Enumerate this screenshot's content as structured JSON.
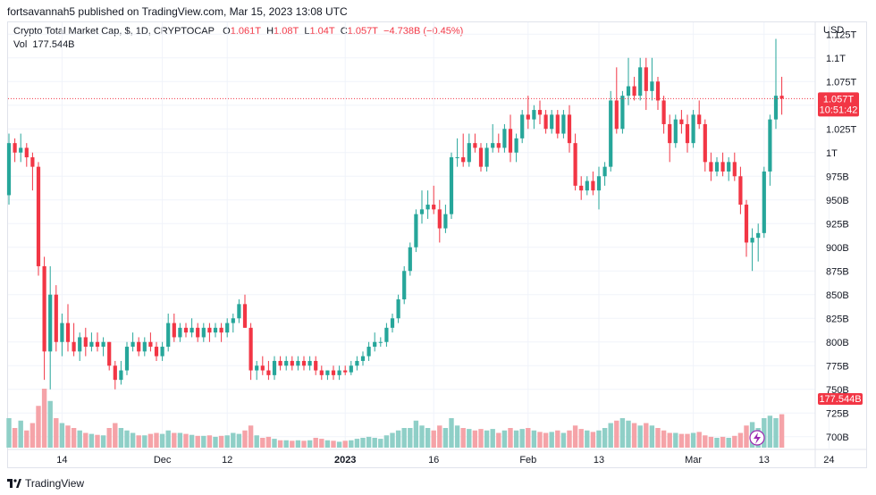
{
  "header": {
    "publisher_line": "fortsavannah5 published on TradingView.com, Mar 15, 2023 13:08 UTC"
  },
  "legend": {
    "symbol": "Crypto Total Market Cap, $, 1D, CRYPTOCAP",
    "o_label": "O",
    "o": "1.061T",
    "h_label": "H",
    "h": "1.08T",
    "l_label": "L",
    "l": "1.04T",
    "c_label": "C",
    "c": "1.057T",
    "change": "−4.738B (−0.45%)",
    "vol_label": "Vol",
    "vol": "177.544B"
  },
  "axis": {
    "currency": "USD"
  },
  "footer": {
    "brand": "TradingView"
  },
  "colors": {
    "up": "#26a69a",
    "down": "#f23645",
    "up_vol": "#8fcfc7",
    "down_vol": "#f5a3a8",
    "grid": "#f0f3fa"
  },
  "chart_data": {
    "type": "candlestick",
    "title": "Crypto Total Market Cap, $, 1D, CRYPTOCAP",
    "y_unit": "T",
    "ylim": [
      0.6875,
      1.1375
    ],
    "y_ticks": [
      0.7,
      0.725,
      0.75,
      0.775,
      0.8,
      0.825,
      0.85,
      0.875,
      0.9,
      0.925,
      0.95,
      0.975,
      1.0,
      1.025,
      1.05,
      1.075,
      1.1,
      1.125
    ],
    "y_tick_labels": [
      "700B",
      "725B",
      "750B",
      "775B",
      "800B",
      "825B",
      "850B",
      "875B",
      "900B",
      "925B",
      "950B",
      "975B",
      "1T",
      "1.025T",
      "1.05T",
      "1.075T",
      "1.1T",
      "1.125T"
    ],
    "x_ticks": [
      {
        "label": "14",
        "index": 9,
        "bold": false
      },
      {
        "label": "Dec",
        "index": 26,
        "bold": false
      },
      {
        "label": "12",
        "index": 37,
        "bold": false
      },
      {
        "label": "2023",
        "index": 57,
        "bold": true
      },
      {
        "label": "16",
        "index": 72,
        "bold": false
      },
      {
        "label": "Feb",
        "index": 88,
        "bold": false
      },
      {
        "label": "13",
        "index": 100,
        "bold": false
      },
      {
        "label": "Mar",
        "index": 116,
        "bold": false
      },
      {
        "label": "13",
        "index": 128,
        "bold": false
      },
      {
        "label": "24",
        "index": 139,
        "bold": false
      }
    ],
    "last_price": {
      "value": 1.057,
      "label": "1.057T",
      "countdown": "10:51:42"
    },
    "last_volume_label": "177.544B",
    "volume_ylim": [
      0,
      120
    ],
    "candles": [
      [
        0.955,
        1.02,
        0.945,
        1.01,
        60
      ],
      [
        1.01,
        1.015,
        0.99,
        1.0,
        40
      ],
      [
        1.0,
        1.02,
        0.99,
        1.005,
        55
      ],
      [
        1.005,
        1.01,
        0.985,
        0.995,
        35
      ],
      [
        0.995,
        1.0,
        0.96,
        0.985,
        50
      ],
      [
        0.985,
        0.99,
        0.87,
        0.88,
        85
      ],
      [
        0.88,
        0.89,
        0.76,
        0.79,
        120
      ],
      [
        0.79,
        0.88,
        0.75,
        0.85,
        95
      ],
      [
        0.85,
        0.86,
        0.79,
        0.8,
        60
      ],
      [
        0.8,
        0.83,
        0.785,
        0.82,
        50
      ],
      [
        0.82,
        0.84,
        0.79,
        0.8,
        45
      ],
      [
        0.8,
        0.82,
        0.785,
        0.79,
        40
      ],
      [
        0.79,
        0.81,
        0.78,
        0.805,
        35
      ],
      [
        0.805,
        0.815,
        0.785,
        0.795,
        30
      ],
      [
        0.795,
        0.81,
        0.79,
        0.8,
        28
      ],
      [
        0.8,
        0.81,
        0.79,
        0.795,
        26
      ],
      [
        0.795,
        0.805,
        0.785,
        0.8,
        25
      ],
      [
        0.8,
        0.8,
        0.77,
        0.775,
        40
      ],
      [
        0.775,
        0.78,
        0.75,
        0.76,
        50
      ],
      [
        0.76,
        0.78,
        0.755,
        0.77,
        40
      ],
      [
        0.77,
        0.8,
        0.765,
        0.795,
        35
      ],
      [
        0.795,
        0.81,
        0.79,
        0.8,
        30
      ],
      [
        0.8,
        0.805,
        0.785,
        0.79,
        25
      ],
      [
        0.79,
        0.805,
        0.785,
        0.8,
        25
      ],
      [
        0.8,
        0.81,
        0.79,
        0.795,
        28
      ],
      [
        0.795,
        0.8,
        0.78,
        0.785,
        30
      ],
      [
        0.785,
        0.8,
        0.78,
        0.795,
        28
      ],
      [
        0.795,
        0.83,
        0.79,
        0.82,
        35
      ],
      [
        0.82,
        0.83,
        0.8,
        0.805,
        30
      ],
      [
        0.805,
        0.82,
        0.8,
        0.815,
        30
      ],
      [
        0.815,
        0.82,
        0.805,
        0.81,
        28
      ],
      [
        0.81,
        0.825,
        0.805,
        0.815,
        26
      ],
      [
        0.815,
        0.82,
        0.8,
        0.805,
        24
      ],
      [
        0.805,
        0.82,
        0.8,
        0.815,
        24
      ],
      [
        0.815,
        0.82,
        0.8,
        0.81,
        25
      ],
      [
        0.81,
        0.82,
        0.805,
        0.815,
        22
      ],
      [
        0.815,
        0.82,
        0.8,
        0.81,
        24
      ],
      [
        0.81,
        0.825,
        0.805,
        0.82,
        25
      ],
      [
        0.82,
        0.83,
        0.81,
        0.825,
        30
      ],
      [
        0.825,
        0.845,
        0.82,
        0.84,
        28
      ],
      [
        0.84,
        0.85,
        0.815,
        0.815,
        35
      ],
      [
        0.815,
        0.82,
        0.76,
        0.77,
        45
      ],
      [
        0.77,
        0.78,
        0.76,
        0.775,
        25
      ],
      [
        0.775,
        0.785,
        0.765,
        0.77,
        20
      ],
      [
        0.77,
        0.78,
        0.76,
        0.765,
        22
      ],
      [
        0.765,
        0.785,
        0.76,
        0.78,
        18
      ],
      [
        0.78,
        0.785,
        0.77,
        0.775,
        15
      ],
      [
        0.775,
        0.785,
        0.77,
        0.78,
        15
      ],
      [
        0.78,
        0.785,
        0.77,
        0.775,
        14
      ],
      [
        0.775,
        0.785,
        0.77,
        0.78,
        15
      ],
      [
        0.78,
        0.785,
        0.77,
        0.775,
        14
      ],
      [
        0.775,
        0.785,
        0.77,
        0.78,
        15
      ],
      [
        0.78,
        0.785,
        0.765,
        0.77,
        20
      ],
      [
        0.77,
        0.775,
        0.76,
        0.765,
        18
      ],
      [
        0.765,
        0.77,
        0.76,
        0.77,
        15
      ],
      [
        0.77,
        0.775,
        0.76,
        0.765,
        14
      ],
      [
        0.765,
        0.775,
        0.76,
        0.77,
        12
      ],
      [
        0.77,
        0.775,
        0.765,
        0.768,
        14
      ],
      [
        0.768,
        0.78,
        0.765,
        0.775,
        15
      ],
      [
        0.775,
        0.785,
        0.77,
        0.78,
        18
      ],
      [
        0.78,
        0.79,
        0.775,
        0.785,
        20
      ],
      [
        0.785,
        0.8,
        0.78,
        0.795,
        22
      ],
      [
        0.795,
        0.81,
        0.79,
        0.8,
        20
      ],
      [
        0.8,
        0.805,
        0.795,
        0.8,
        18
      ],
      [
        0.8,
        0.82,
        0.795,
        0.815,
        25
      ],
      [
        0.815,
        0.83,
        0.81,
        0.825,
        30
      ],
      [
        0.825,
        0.85,
        0.82,
        0.845,
        35
      ],
      [
        0.845,
        0.88,
        0.84,
        0.875,
        40
      ],
      [
        0.875,
        0.905,
        0.87,
        0.9,
        40
      ],
      [
        0.9,
        0.94,
        0.895,
        0.935,
        55
      ],
      [
        0.935,
        0.96,
        0.925,
        0.94,
        45
      ],
      [
        0.94,
        0.96,
        0.93,
        0.945,
        40
      ],
      [
        0.945,
        0.965,
        0.935,
        0.94,
        35
      ],
      [
        0.94,
        0.95,
        0.905,
        0.92,
        45
      ],
      [
        0.92,
        0.945,
        0.915,
        0.935,
        40
      ],
      [
        0.935,
        1.0,
        0.93,
        0.995,
        60
      ],
      [
        0.995,
        1.015,
        0.985,
        0.995,
        45
      ],
      [
        0.995,
        1.02,
        0.985,
        0.99,
        40
      ],
      [
        0.99,
        1.02,
        0.985,
        1.01,
        38
      ],
      [
        1.01,
        1.02,
        1.0,
        1.005,
        35
      ],
      [
        1.005,
        1.01,
        0.98,
        0.985,
        38
      ],
      [
        0.985,
        1.01,
        0.98,
        1.005,
        35
      ],
      [
        1.005,
        1.03,
        1.0,
        1.01,
        38
      ],
      [
        1.01,
        1.02,
        1.0,
        1.005,
        30
      ],
      [
        1.005,
        1.03,
        1.0,
        1.025,
        35
      ],
      [
        1.025,
        1.04,
        0.99,
        1.0,
        40
      ],
      [
        1.0,
        1.02,
        0.99,
        1.015,
        35
      ],
      [
        1.015,
        1.045,
        1.01,
        1.04,
        38
      ],
      [
        1.04,
        1.06,
        1.025,
        1.035,
        40
      ],
      [
        1.035,
        1.05,
        1.025,
        1.045,
        35
      ],
      [
        1.045,
        1.055,
        1.03,
        1.04,
        32
      ],
      [
        1.04,
        1.045,
        1.02,
        1.025,
        30
      ],
      [
        1.025,
        1.045,
        1.02,
        1.04,
        32
      ],
      [
        1.04,
        1.045,
        1.015,
        1.02,
        35
      ],
      [
        1.02,
        1.045,
        1.015,
        1.04,
        30
      ],
      [
        1.04,
        1.05,
        1.0,
        1.01,
        35
      ],
      [
        1.01,
        1.02,
        0.96,
        0.965,
        45
      ],
      [
        0.965,
        0.975,
        0.95,
        0.96,
        38
      ],
      [
        0.96,
        0.975,
        0.955,
        0.97,
        35
      ],
      [
        0.97,
        0.98,
        0.955,
        0.96,
        32
      ],
      [
        0.96,
        0.985,
        0.94,
        0.975,
        35
      ],
      [
        0.975,
        0.99,
        0.965,
        0.985,
        40
      ],
      [
        0.985,
        1.065,
        0.98,
        1.055,
        50
      ],
      [
        1.055,
        1.09,
        1.02,
        1.025,
        55
      ],
      [
        1.025,
        1.065,
        1.02,
        1.06,
        60
      ],
      [
        1.06,
        1.1,
        1.05,
        1.07,
        55
      ],
      [
        1.07,
        1.08,
        1.055,
        1.06,
        50
      ],
      [
        1.06,
        1.1,
        1.055,
        1.09,
        45
      ],
      [
        1.09,
        1.1,
        1.045,
        1.065,
        50
      ],
      [
        1.065,
        1.1,
        1.055,
        1.075,
        45
      ],
      [
        1.075,
        1.08,
        1.045,
        1.055,
        40
      ],
      [
        1.055,
        1.06,
        1.02,
        1.03,
        35
      ],
      [
        1.03,
        1.04,
        0.99,
        1.01,
        30
      ],
      [
        1.01,
        1.04,
        1.005,
        1.035,
        30
      ],
      [
        1.035,
        1.045,
        1.02,
        1.03,
        28
      ],
      [
        1.03,
        1.04,
        1.0,
        1.01,
        28
      ],
      [
        1.01,
        1.045,
        1.005,
        1.04,
        30
      ],
      [
        1.04,
        1.055,
        1.025,
        1.03,
        32
      ],
      [
        1.03,
        1.035,
        0.98,
        0.99,
        25
      ],
      [
        0.99,
        1.0,
        0.97,
        0.98,
        22
      ],
      [
        0.98,
        0.995,
        0.975,
        0.99,
        20
      ],
      [
        0.99,
        1.0,
        0.975,
        0.98,
        22
      ],
      [
        0.98,
        0.995,
        0.97,
        0.99,
        20
      ],
      [
        0.99,
        1.0,
        0.97,
        0.975,
        24
      ],
      [
        0.975,
        0.985,
        0.935,
        0.945,
        30
      ],
      [
        0.945,
        0.95,
        0.89,
        0.905,
        45
      ],
      [
        0.905,
        0.92,
        0.875,
        0.91,
        52
      ],
      [
        0.91,
        0.925,
        0.885,
        0.915,
        40
      ],
      [
        0.915,
        0.985,
        0.91,
        0.98,
        60
      ],
      [
        0.98,
        1.04,
        0.965,
        1.035,
        65
      ],
      [
        1.035,
        1.12,
        1.025,
        1.06,
        60
      ],
      [
        1.06,
        1.08,
        1.04,
        1.057,
        68
      ]
    ]
  }
}
